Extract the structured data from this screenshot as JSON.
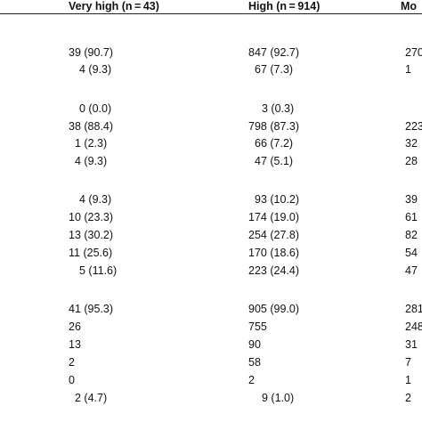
{
  "headers": [
    "Very high (n = 43)",
    "High (n = 914)",
    "Mo"
  ],
  "rows": [
    [
      "39 (90.7)",
      "847 (92.7)",
      "270"
    ],
    [
      "4 (9.3)",
      "67 (7.3)",
      "1"
    ],
    [
      "0 (0.0)",
      "3 (0.3)",
      ""
    ],
    [
      "38 (88.4)",
      "798 (87.3)",
      "223"
    ],
    [
      "1 (2.3)",
      "66 (7.2)",
      "32"
    ],
    [
      "4 (9.3)",
      "47 (5.1)",
      "28"
    ],
    [
      "4 (9.3)",
      "93 (10.2)",
      "39"
    ],
    [
      "10 (23.3)",
      "174 (19.0)",
      "61"
    ],
    [
      "13 (30.2)",
      "254 (27.8)",
      "82"
    ],
    [
      "11 (25.6)",
      "170 (18.6)",
      "54"
    ],
    [
      "5 (11.6)",
      "223 (24.4)",
      "47"
    ],
    [
      "41 (95.3)",
      "905 (99.0)",
      "281"
    ],
    [
      "26",
      "755",
      "248"
    ],
    [
      "13",
      "90",
      "31"
    ],
    [
      "2",
      "58",
      "7"
    ],
    [
      "0",
      "2",
      "1"
    ],
    [
      "2 (4.7)",
      "9 (1.0)",
      "2"
    ]
  ]
}
